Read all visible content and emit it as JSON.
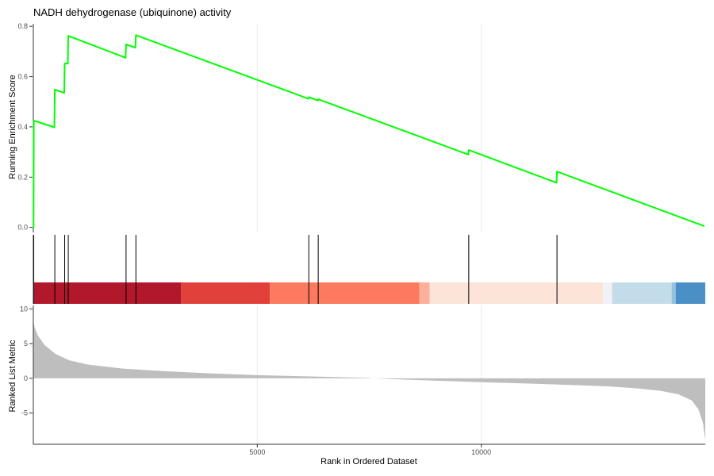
{
  "chart_data": {
    "type": "line",
    "title": "NADH dehydrogenase (ubiquinone) activity",
    "xlabel": "Rank in Ordered Dataset",
    "ylabel_top": "Running Enrichment Score",
    "ylabel_bottom": "Ranked List Metric",
    "x_range": [
      0,
      15000
    ],
    "x_ticks": [
      5000,
      10000
    ],
    "x_tick_labels": [
      "5000",
      "10000"
    ],
    "enrichment": {
      "y_range": [
        -0.02,
        0.81
      ],
      "y_ticks": [
        0.0,
        0.2,
        0.4,
        0.6,
        0.8
      ],
      "y_tick_labels": [
        "0.0",
        "0.2",
        "0.4",
        "0.6",
        "0.8"
      ],
      "line_color": "#00ff00",
      "points": [
        [
          0,
          0.0
        ],
        [
          5,
          0.0
        ],
        [
          10,
          0.425
        ],
        [
          470,
          0.398
        ],
        [
          480,
          0.548
        ],
        [
          690,
          0.535
        ],
        [
          700,
          0.652
        ],
        [
          770,
          0.652
        ],
        [
          780,
          0.762
        ],
        [
          2060,
          0.675
        ],
        [
          2070,
          0.728
        ],
        [
          2280,
          0.715
        ],
        [
          2290,
          0.765
        ],
        [
          6140,
          0.512
        ],
        [
          6150,
          0.518
        ],
        [
          6350,
          0.505
        ],
        [
          6360,
          0.51
        ],
        [
          9710,
          0.29
        ],
        [
          9720,
          0.308
        ],
        [
          11680,
          0.178
        ],
        [
          11690,
          0.222
        ],
        [
          14980,
          0.005
        ]
      ]
    },
    "hits": [
      10,
      480,
      700,
      780,
      2070,
      2290,
      6150,
      6360,
      9720,
      11690
    ],
    "color_bands": [
      {
        "start": 0,
        "end": 3300,
        "color": "#b2182b"
      },
      {
        "start": 3300,
        "end": 5280,
        "color": "#e2403a"
      },
      {
        "start": 5280,
        "end": 8620,
        "color": "#fc7a5f"
      },
      {
        "start": 8620,
        "end": 8850,
        "color": "#fcb09a"
      },
      {
        "start": 8850,
        "end": 12720,
        "color": "#fde4d9"
      },
      {
        "start": 12720,
        "end": 12920,
        "color": "#f1f2f6"
      },
      {
        "start": 12920,
        "end": 14250,
        "color": "#c3dcea"
      },
      {
        "start": 14250,
        "end": 14340,
        "color": "#92c2dd"
      },
      {
        "start": 14340,
        "end": 15000,
        "color": "#4a90c6"
      }
    ],
    "ranked_metric": {
      "y_range": [
        -9.5,
        10.5
      ],
      "y_ticks": [
        -5,
        0,
        5,
        10
      ],
      "y_tick_labels": [
        "-5",
        "0",
        "5",
        "10"
      ],
      "fill_color": "#bebebe",
      "points": [
        [
          0,
          8.2
        ],
        [
          30,
          7.3
        ],
        [
          100,
          6.2
        ],
        [
          250,
          4.8
        ],
        [
          500,
          3.5
        ],
        [
          800,
          2.6
        ],
        [
          1200,
          2.0
        ],
        [
          2000,
          1.4
        ],
        [
          3000,
          1.0
        ],
        [
          4000,
          0.7
        ],
        [
          5000,
          0.45
        ],
        [
          6000,
          0.3
        ],
        [
          7000,
          0.15
        ],
        [
          7500,
          0.05
        ],
        [
          7560,
          0.0
        ],
        [
          8000,
          -0.1
        ],
        [
          9000,
          -0.35
        ],
        [
          10000,
          -0.55
        ],
        [
          11000,
          -0.75
        ],
        [
          12000,
          -0.95
        ],
        [
          12800,
          -1.15
        ],
        [
          13500,
          -1.45
        ],
        [
          14000,
          -1.8
        ],
        [
          14400,
          -2.3
        ],
        [
          14700,
          -3.2
        ],
        [
          14850,
          -4.5
        ],
        [
          14950,
          -6.5
        ],
        [
          14990,
          -8.5
        ],
        [
          15000,
          -8.8
        ]
      ]
    }
  }
}
